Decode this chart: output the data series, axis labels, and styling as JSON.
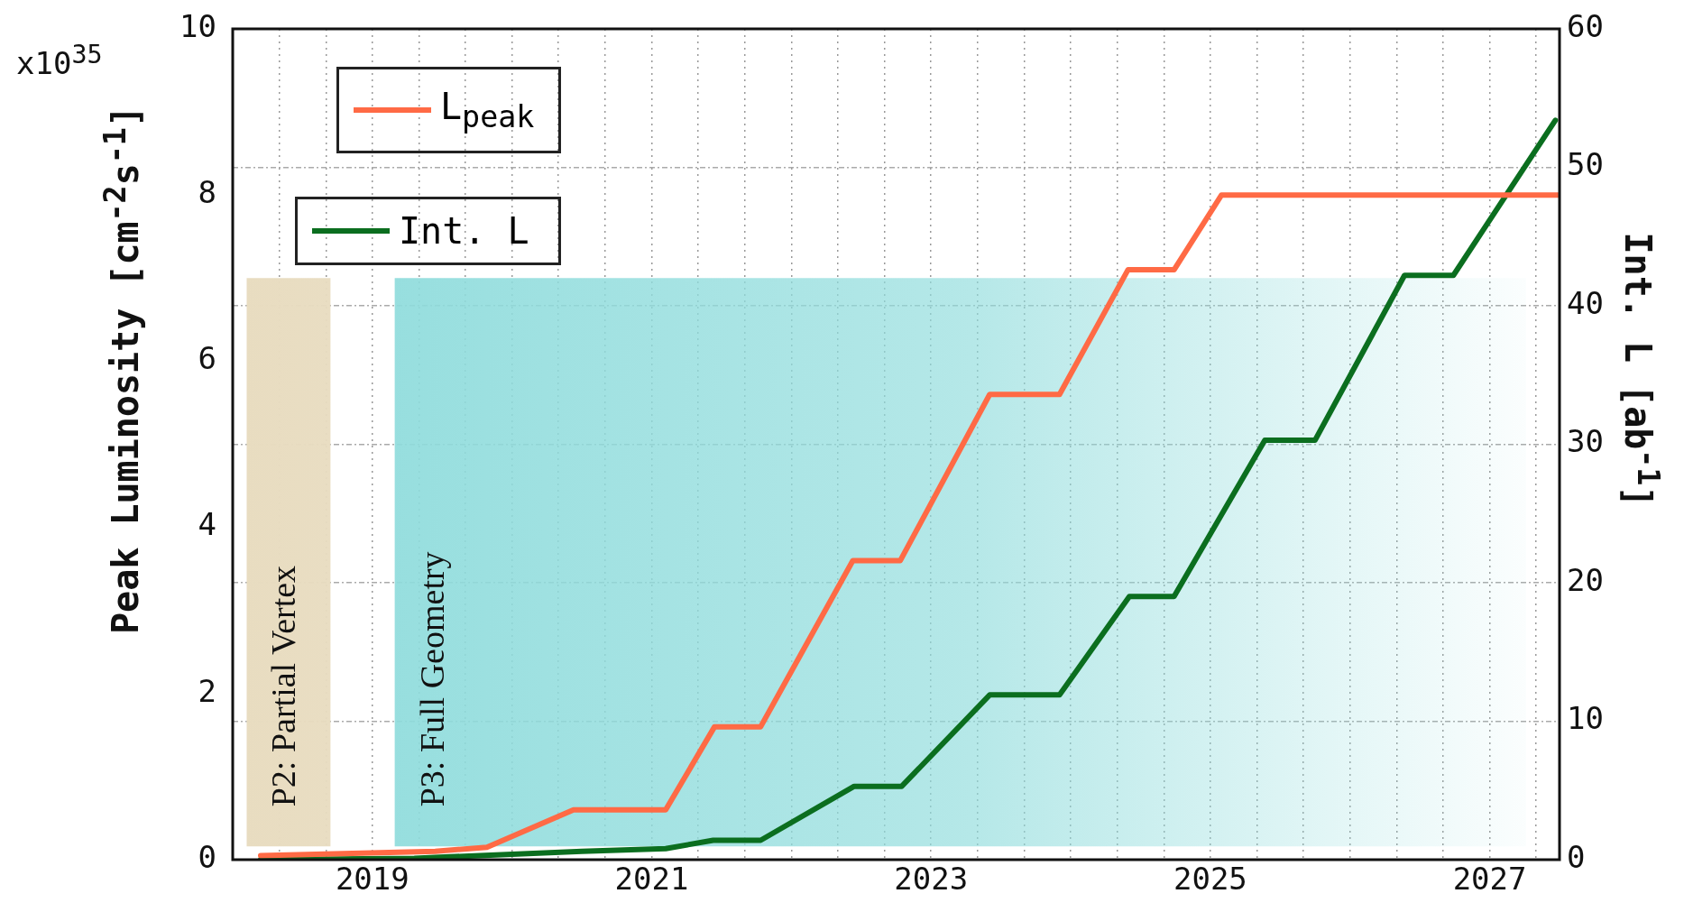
{
  "chart_data": {
    "type": "line",
    "ylabel": "Peak Luminosity [cm$^{-2}$s$^{-1}$]",
    "y2label": "Int. L [ab$^{-1}$]",
    "annotations": [
      "x10$^{35}$"
    ],
    "xlim": [
      2018,
      2027.5
    ],
    "xticks": [
      {
        "value": 2018.333,
        "label": null
      },
      {
        "value": 2018.667,
        "label": null
      },
      2019,
      {
        "value": 2019.333,
        "label": null
      },
      {
        "value": 2019.667,
        "label": null
      },
      {
        "value": 2020,
        "label": null
      },
      {
        "value": 2020.333,
        "label": null
      },
      {
        "value": 2020.667,
        "label": null
      },
      2021,
      {
        "value": 2021.333,
        "label": null
      },
      {
        "value": 2021.667,
        "label": null
      },
      {
        "value": 2022,
        "label": null
      },
      {
        "value": 2022.333,
        "label": null
      },
      {
        "value": 2022.667,
        "label": null
      },
      2023,
      {
        "value": 2023.333,
        "label": null
      },
      {
        "value": 2023.667,
        "label": null
      },
      {
        "value": 2024,
        "label": null
      },
      {
        "value": 2024.333,
        "label": null
      },
      {
        "value": 2024.667,
        "label": null
      },
      2025,
      {
        "value": 2025.333,
        "label": null
      },
      {
        "value": 2025.667,
        "label": null
      },
      {
        "value": 2026,
        "label": null
      },
      {
        "value": 2026.333,
        "label": null
      },
      {
        "value": 2026.667,
        "label": null
      },
      2027,
      {
        "value": 2027.333,
        "label": null
      }
    ],
    "ylim": [
      0,
      10
    ],
    "yticks": [
      0,
      2,
      4,
      6,
      8,
      10
    ],
    "y2lim": [
      0,
      60
    ],
    "y2ticks": [
      0,
      10,
      20,
      30,
      40,
      50,
      60
    ],
    "grid": true,
    "legend": "top left",
    "marker": "none",
    "line_style": "solid",
    "bands": [
      {
        "axis": "x",
        "from": 2018.1,
        "to": 2018.7,
        "label": "P2: Partial Vertex",
        "color": "#e8dcc0"
      },
      {
        "axis": "x",
        "from": 2019.16,
        "to": 2027.26,
        "label": "P3: Full Geometry",
        "color": "#8fdcdc"
      }
    ],
    "series": [
      {
        "name": "L$_{peak}$",
        "color": "#ff6a45",
        "x": [
          2018.2,
          2019.45,
          2019.82,
          2020.44,
          2021.1,
          2021.45,
          2021.78,
          2022.44,
          2022.78,
          2023.42,
          2023.92,
          2024.41,
          2024.74,
          2025.08,
          2027.5
        ],
        "values": [
          0.05,
          0.1,
          0.15,
          0.6,
          0.6,
          1.6,
          1.6,
          3.6,
          3.6,
          5.6,
          5.6,
          7.1,
          7.1,
          8.0,
          8.0
        ]
      },
      {
        "name": "Int. L",
        "color": "#0b6e1f",
        "axis": "y2",
        "x": [
          2018.2,
          2019.3,
          2020.5,
          2021.1,
          2021.44,
          2021.78,
          2022.45,
          2022.79,
          2023.42,
          2023.92,
          2024.42,
          2024.74,
          2025.39,
          2025.75,
          2026.39,
          2026.74,
          2027.47
        ],
        "values": [
          0,
          0.1,
          0.6,
          0.8,
          1.4,
          1.4,
          5.3,
          5.3,
          11.9,
          11.9,
          19,
          19,
          30.3,
          30.3,
          42.2,
          42.2,
          53.4
        ]
      }
    ]
  }
}
